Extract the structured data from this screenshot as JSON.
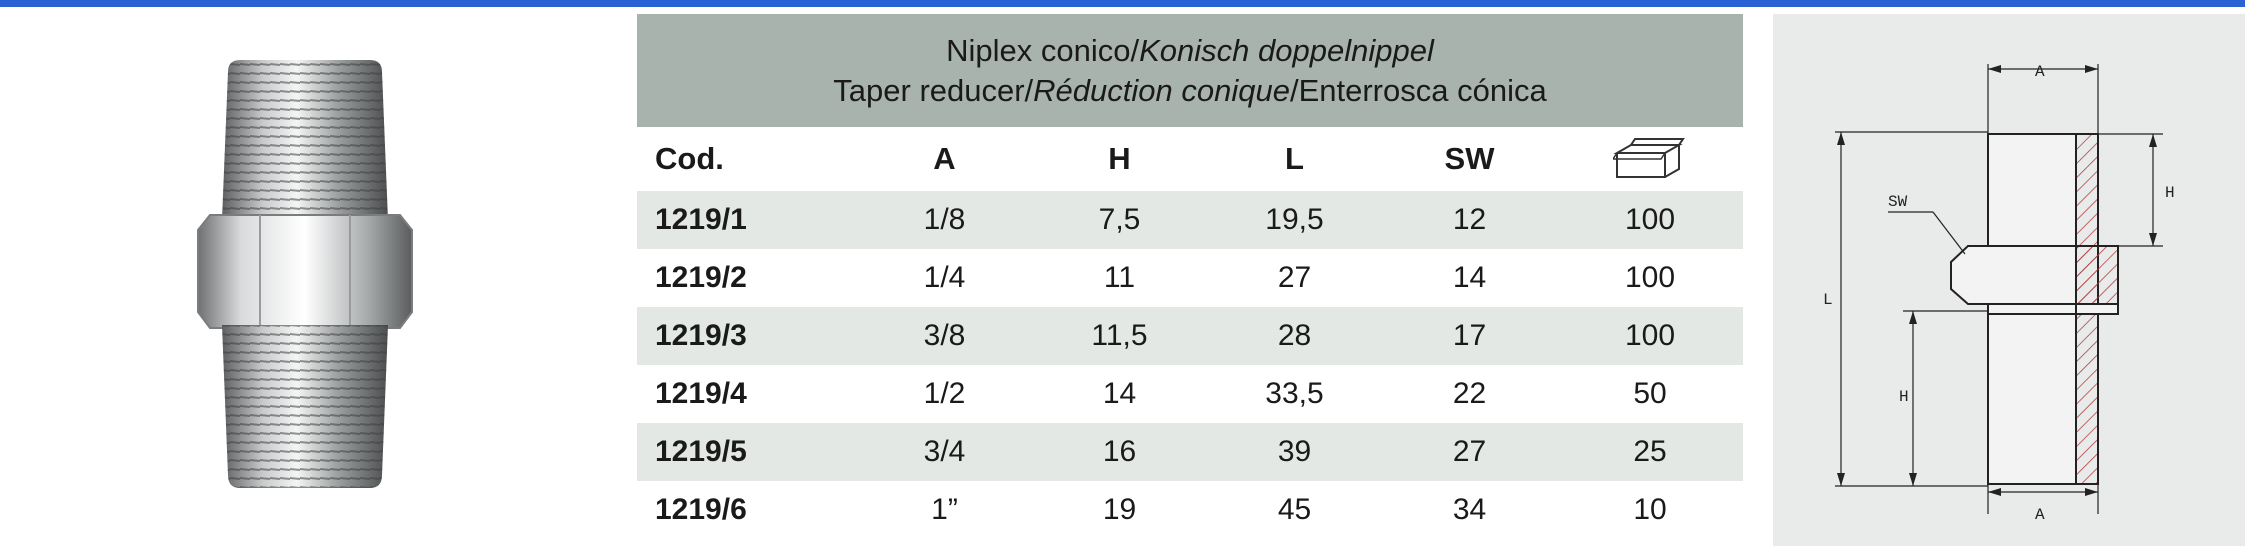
{
  "header": {
    "line1_regular": "Niplex conico/",
    "line1_italic": "Konisch doppelnippel",
    "line2_a": "Taper reducer/",
    "line2_italic": "Réduction conique",
    "line2_b": "/Enterrosca cónica"
  },
  "columns": [
    "Cod.",
    "A",
    "H",
    "L",
    "SW"
  ],
  "box_icon": "package-box-icon",
  "rows": [
    {
      "cod": "1219/1",
      "a": "1/8",
      "h": "7,5",
      "l": "19,5",
      "sw": "12",
      "qty": "100"
    },
    {
      "cod": "1219/2",
      "a": "1/4",
      "h": "11",
      "l": "27",
      "sw": "14",
      "qty": "100"
    },
    {
      "cod": "1219/3",
      "a": "3/8",
      "h": "11,5",
      "l": "28",
      "sw": "17",
      "qty": "100"
    },
    {
      "cod": "1219/4",
      "a": "1/2",
      "h": "14",
      "l": "33,5",
      "sw": "22",
      "qty": "50"
    },
    {
      "cod": "1219/5",
      "a": "3/4",
      "h": "16",
      "l": "39",
      "sw": "27",
      "qty": "25"
    },
    {
      "cod": "1219/6",
      "a": "1”",
      "h": "19",
      "l": "45",
      "sw": "34",
      "qty": "10"
    }
  ],
  "drawing": {
    "label_a_top": "A",
    "label_a_bottom": "A",
    "label_h_top": "H",
    "label_h_bottom": "H",
    "label_l": "L",
    "label_sw": "SW"
  },
  "colors": {
    "accent_bar": "#2a62d6",
    "header_band": "#a8b3ad",
    "alt_row": "#e4e8e5",
    "drawing_bg": "#e8ebea"
  }
}
